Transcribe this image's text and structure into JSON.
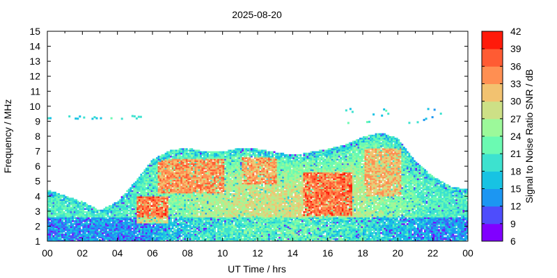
{
  "chart_data": {
    "type": "heatmap",
    "title": "2025-08-20",
    "xlabel": "UT Time / hrs",
    "ylabel": "Frequency / MHz",
    "colorbar_label": "Signal to Noise Ratio SNR / dB",
    "xlim": [
      0,
      24
    ],
    "ylim": [
      1,
      15
    ],
    "x_ticks": [
      "00",
      "02",
      "04",
      "06",
      "08",
      "10",
      "12",
      "14",
      "16",
      "18",
      "20",
      "22",
      "00"
    ],
    "y_ticks": [
      "1",
      "2",
      "3",
      "4",
      "5",
      "6",
      "7",
      "8",
      "9",
      "10",
      "11",
      "12",
      "13",
      "14",
      "15"
    ],
    "colorbar_ticks": [
      "6",
      "9",
      "12",
      "15",
      "18",
      "21",
      "24",
      "27",
      "30",
      "33",
      "36",
      "39",
      "42"
    ],
    "color_levels": [
      {
        "min": 6,
        "max": 9,
        "color": "#8000ff"
      },
      {
        "min": 9,
        "max": 12,
        "color": "#4e4dfc"
      },
      {
        "min": 12,
        "max": 15,
        "color": "#1c96f2"
      },
      {
        "min": 15,
        "max": 18,
        "color": "#17c3e3"
      },
      {
        "min": 18,
        "max": 21,
        "color": "#3de2cf"
      },
      {
        "min": 21,
        "max": 24,
        "color": "#6bfab2"
      },
      {
        "min": 24,
        "max": 27,
        "color": "#9cf99a"
      },
      {
        "min": 27,
        "max": 30,
        "color": "#cde086"
      },
      {
        "min": 30,
        "max": 33,
        "color": "#f2c270"
      },
      {
        "min": 33,
        "max": 36,
        "color": "#ff8f52"
      },
      {
        "min": 36,
        "max": 39,
        "color": "#ff5b33"
      },
      {
        "min": 39,
        "max": 42,
        "color": "#ff1a0a"
      }
    ],
    "upper_envelope_mhz": [
      {
        "hour": 0,
        "freq": 4.4
      },
      {
        "hour": 1,
        "freq": 4.0
      },
      {
        "hour": 2,
        "freq": 3.6
      },
      {
        "hour": 3,
        "freq": 3.0
      },
      {
        "hour": 4,
        "freq": 3.6
      },
      {
        "hour": 5,
        "freq": 4.9
      },
      {
        "hour": 6,
        "freq": 6.4
      },
      {
        "hour": 7,
        "freq": 7.0
      },
      {
        "hour": 8,
        "freq": 7.2
      },
      {
        "hour": 9,
        "freq": 6.9
      },
      {
        "hour": 10,
        "freq": 6.9
      },
      {
        "hour": 11,
        "freq": 7.2
      },
      {
        "hour": 12,
        "freq": 7.1
      },
      {
        "hour": 13,
        "freq": 6.9
      },
      {
        "hour": 14,
        "freq": 6.7
      },
      {
        "hour": 15,
        "freq": 6.9
      },
      {
        "hour": 16,
        "freq": 7.1
      },
      {
        "hour": 17,
        "freq": 7.4
      },
      {
        "hour": 18,
        "freq": 7.9
      },
      {
        "hour": 19,
        "freq": 8.2
      },
      {
        "hour": 20,
        "freq": 7.8
      },
      {
        "hour": 21,
        "freq": 6.3
      },
      {
        "hour": 22,
        "freq": 5.3
      },
      {
        "hour": 23,
        "freq": 4.6
      },
      {
        "hour": 24,
        "freq": 4.4
      }
    ],
    "intense_regions": [
      {
        "hour_start": 5.0,
        "hour_end": 6.8,
        "freq_low": 2.2,
        "freq_high": 4.0,
        "snr": 40
      },
      {
        "hour_start": 6.2,
        "hour_end": 10.0,
        "freq_low": 4.2,
        "freq_high": 6.5,
        "snr": 38
      },
      {
        "hour_start": 11.0,
        "hour_end": 13.0,
        "freq_low": 4.8,
        "freq_high": 6.6,
        "snr": 37
      },
      {
        "hour_start": 14.5,
        "hour_end": 17.3,
        "freq_low": 2.7,
        "freq_high": 5.6,
        "snr": 40
      },
      {
        "hour_start": 18.0,
        "hour_end": 20.2,
        "freq_low": 4.0,
        "freq_high": 7.2,
        "snr": 36
      }
    ],
    "scatter_9mhz": {
      "freq": 9.3,
      "hour_start": 0.0,
      "hour_end": 5.6,
      "snr": 16
    }
  }
}
